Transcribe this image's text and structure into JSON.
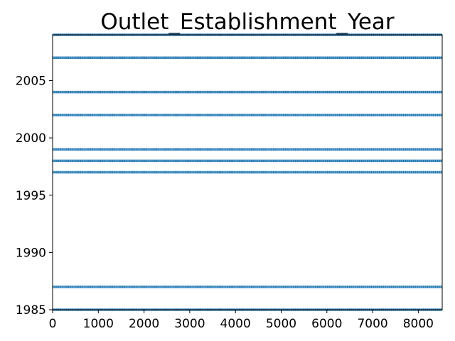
{
  "chart_data": {
    "type": "scatter",
    "title": "Outlet_Establishment_Year",
    "xlabel": "",
    "ylabel": "",
    "xlim": [
      0,
      8523
    ],
    "ylim": [
      1985,
      2009
    ],
    "x_ticks": [
      0,
      1000,
      2000,
      3000,
      4000,
      5000,
      6000,
      7000,
      8000
    ],
    "y_ticks": [
      1985,
      1990,
      1995,
      2000,
      2005
    ],
    "grid": false,
    "marker_color": "#1f77b4",
    "series": [
      {
        "x_range": [
          0,
          8523
        ],
        "y_levels": [
          1985,
          1987,
          1997,
          1998,
          1999,
          2002,
          2004,
          2007,
          2009
        ]
      }
    ]
  }
}
